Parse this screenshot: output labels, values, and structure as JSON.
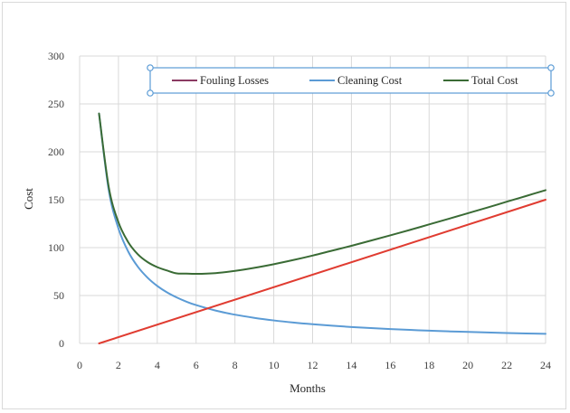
{
  "chart_data": {
    "type": "line",
    "xlabel": "Months",
    "ylabel": "Cost",
    "xlim": [
      0,
      24
    ],
    "ylim": [
      0,
      300
    ],
    "x_ticks": [
      0,
      2,
      4,
      6,
      8,
      10,
      12,
      14,
      16,
      18,
      20,
      22,
      24
    ],
    "y_ticks": [
      0,
      50,
      100,
      150,
      200,
      250,
      300
    ],
    "grid": true,
    "legend_position": "top",
    "x": [
      1,
      1.5,
      2,
      2.5,
      3,
      3.5,
      4,
      4.5,
      5,
      5.5,
      6,
      7,
      8,
      9,
      10,
      11,
      12,
      13,
      14,
      15,
      16,
      17,
      18,
      19,
      20,
      21,
      22,
      23,
      24
    ],
    "series": [
      {
        "name": "Fouling Losses",
        "color": "#8B3A62",
        "values": [
          0,
          3.2,
          6.5,
          9.8,
          13,
          16.3,
          19.6,
          22.8,
          26.1,
          29.3,
          32.6,
          39.1,
          45.7,
          52.2,
          58.7,
          65.2,
          71.7,
          78.3,
          84.8,
          91.3,
          97.8,
          104.3,
          110.9,
          117.4,
          123.9,
          130.4,
          137,
          143.5,
          150
        ]
      },
      {
        "name": "Cleaning Cost",
        "color": "#5B9BD5",
        "values": [
          240,
          160,
          120,
          96,
          80,
          68.6,
          60,
          53.3,
          48,
          43.6,
          40,
          34.3,
          30,
          26.7,
          24,
          21.8,
          20,
          18.5,
          17.1,
          16,
          15,
          14.1,
          13.3,
          12.6,
          12,
          11.4,
          10.9,
          10.4,
          10
        ]
      },
      {
        "name": "Total Cost",
        "color": "#3A6B35",
        "values": [
          240,
          163.2,
          126.5,
          105.8,
          93,
          84.9,
          79.6,
          76.1,
          73.1,
          72.9,
          72.6,
          73.4,
          75.7,
          78.9,
          82.7,
          87,
          91.7,
          96.8,
          101.9,
          107.3,
          112.8,
          118.4,
          124.2,
          130,
          135.9,
          141.8,
          147.9,
          153.9,
          160
        ]
      }
    ],
    "extra_lines": [
      {
        "name": "Fouling Losses (plotted)",
        "color": "#E03C31",
        "x": [
          1,
          24
        ],
        "values": [
          0,
          150
        ]
      }
    ]
  }
}
